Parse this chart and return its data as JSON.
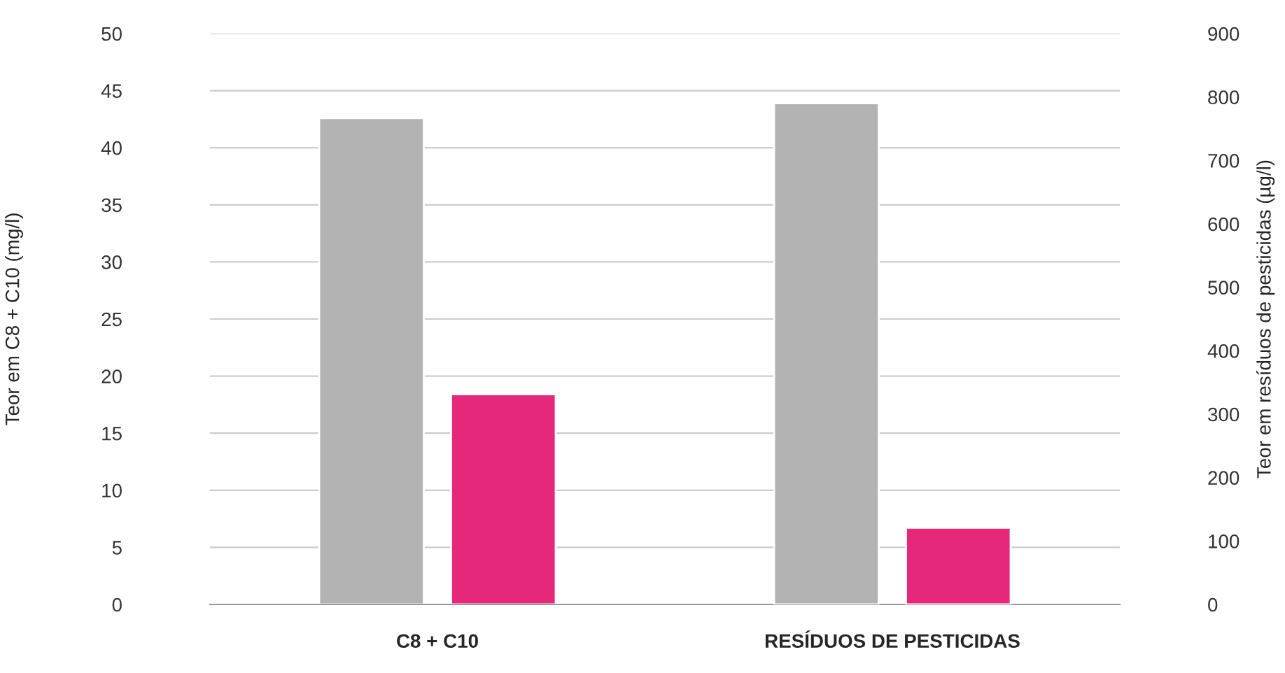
{
  "chart_data": {
    "type": "bar",
    "categories": [
      "C8 + C10",
      "RESÍDUOS DE PESTICIDAS"
    ],
    "ylabel": "Teor em C8 + C10 (mg/l)",
    "y2label": "Teor em resíduos de pesticidas (µg/l)",
    "series": [
      {
        "color": "#b3b3b3",
        "values": [
          42.6,
          null
        ]
      },
      {
        "color": "#e6287a",
        "values": [
          18.4,
          null
        ]
      },
      {
        "color": "#b3b3b3",
        "values": [
          null,
          790
        ],
        "axis": "y2"
      },
      {
        "color": "#e6287a",
        "values": [
          null,
          121
        ],
        "axis": "y2"
      }
    ],
    "ylim": [
      0,
      50
    ],
    "yticks": [
      0,
      5,
      10,
      15,
      20,
      25,
      30,
      35,
      40,
      45,
      50
    ],
    "y2lim": [
      0,
      900
    ],
    "y2ticks": [
      0,
      100,
      200,
      300,
      400,
      500,
      600,
      700,
      800,
      900
    ],
    "grid": "y",
    "legend": false
  }
}
